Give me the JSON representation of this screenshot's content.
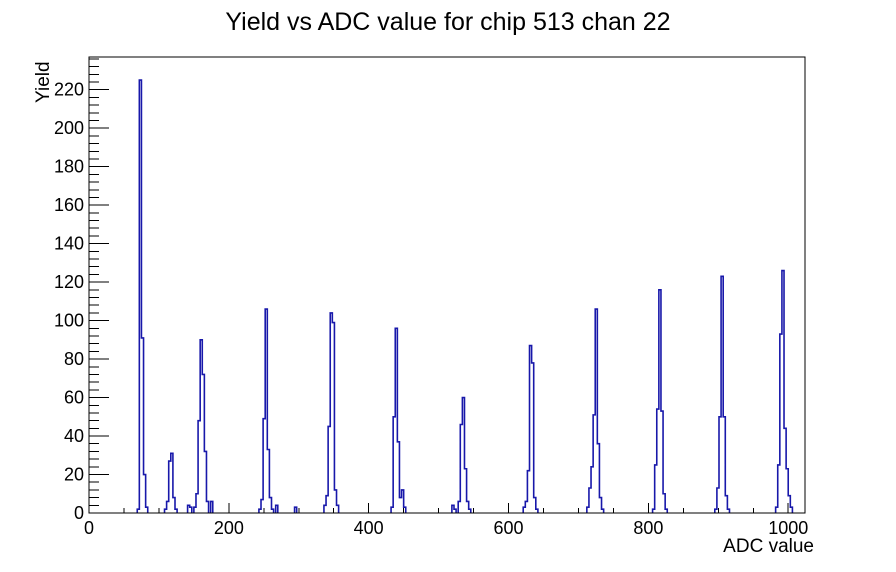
{
  "title": "Yield vs ADC value for chip 513 chan 22",
  "chart_data": {
    "type": "bar",
    "title": "Yield vs ADC value for chip 513 chan 22",
    "xlabel": "ADC value",
    "ylabel": "Yield",
    "xlim": [
      0,
      1024
    ],
    "ylim": [
      0,
      237
    ],
    "grid": false,
    "legend": "none",
    "line_color": "#1818aa",
    "axis_color": "#000000",
    "background_color": "#ffffff",
    "bin_width": 3,
    "x_major_ticks": [
      0,
      200,
      400,
      600,
      800,
      1000
    ],
    "x_tick_labels": [
      "0",
      "200",
      "400",
      "600",
      "800",
      "1000"
    ],
    "x_minor_step": 50,
    "y_major_ticks": [
      0,
      20,
      40,
      60,
      80,
      100,
      120,
      140,
      160,
      180,
      200,
      220
    ],
    "y_tick_labels": [
      "0",
      "20",
      "40",
      "60",
      "80",
      "100",
      "120",
      "140",
      "160",
      "180",
      "200",
      "220"
    ],
    "y_minor_step": 4,
    "bars": [
      [
        69,
        2
      ],
      [
        72,
        225
      ],
      [
        75,
        91
      ],
      [
        78,
        20
      ],
      [
        81,
        3
      ],
      [
        108,
        2
      ],
      [
        111,
        6
      ],
      [
        114,
        27
      ],
      [
        117,
        31
      ],
      [
        120,
        8
      ],
      [
        123,
        2
      ],
      [
        141,
        4
      ],
      [
        144,
        3
      ],
      [
        150,
        3
      ],
      [
        153,
        10
      ],
      [
        156,
        48
      ],
      [
        159,
        90
      ],
      [
        162,
        72
      ],
      [
        165,
        32
      ],
      [
        168,
        6
      ],
      [
        174,
        6
      ],
      [
        243,
        2
      ],
      [
        246,
        7
      ],
      [
        249,
        49
      ],
      [
        252,
        106
      ],
      [
        255,
        33
      ],
      [
        258,
        8
      ],
      [
        261,
        2
      ],
      [
        267,
        4
      ],
      [
        294,
        3
      ],
      [
        336,
        4
      ],
      [
        339,
        9
      ],
      [
        342,
        45
      ],
      [
        345,
        104
      ],
      [
        348,
        99
      ],
      [
        351,
        12
      ],
      [
        354,
        4
      ],
      [
        432,
        3
      ],
      [
        435,
        50
      ],
      [
        438,
        96
      ],
      [
        441,
        37
      ],
      [
        444,
        8
      ],
      [
        447,
        12
      ],
      [
        450,
        3
      ],
      [
        519,
        4
      ],
      [
        522,
        2
      ],
      [
        528,
        6
      ],
      [
        531,
        46
      ],
      [
        534,
        60
      ],
      [
        537,
        23
      ],
      [
        540,
        6
      ],
      [
        543,
        2
      ],
      [
        621,
        3
      ],
      [
        624,
        6
      ],
      [
        627,
        22
      ],
      [
        630,
        87
      ],
      [
        633,
        78
      ],
      [
        636,
        8
      ],
      [
        639,
        2
      ],
      [
        712,
        3
      ],
      [
        715,
        13
      ],
      [
        718,
        24
      ],
      [
        721,
        51
      ],
      [
        724,
        106
      ],
      [
        727,
        36
      ],
      [
        730,
        8
      ],
      [
        733,
        2
      ],
      [
        806,
        2
      ],
      [
        809,
        25
      ],
      [
        812,
        54
      ],
      [
        815,
        116
      ],
      [
        818,
        53
      ],
      [
        821,
        10
      ],
      [
        824,
        2
      ],
      [
        895,
        2
      ],
      [
        898,
        13
      ],
      [
        901,
        50
      ],
      [
        904,
        123
      ],
      [
        907,
        50
      ],
      [
        910,
        9
      ],
      [
        913,
        2
      ],
      [
        982,
        3
      ],
      [
        985,
        25
      ],
      [
        988,
        93
      ],
      [
        991,
        126
      ],
      [
        994,
        44
      ],
      [
        997,
        23
      ],
      [
        1000,
        9
      ],
      [
        1003,
        3
      ]
    ]
  }
}
